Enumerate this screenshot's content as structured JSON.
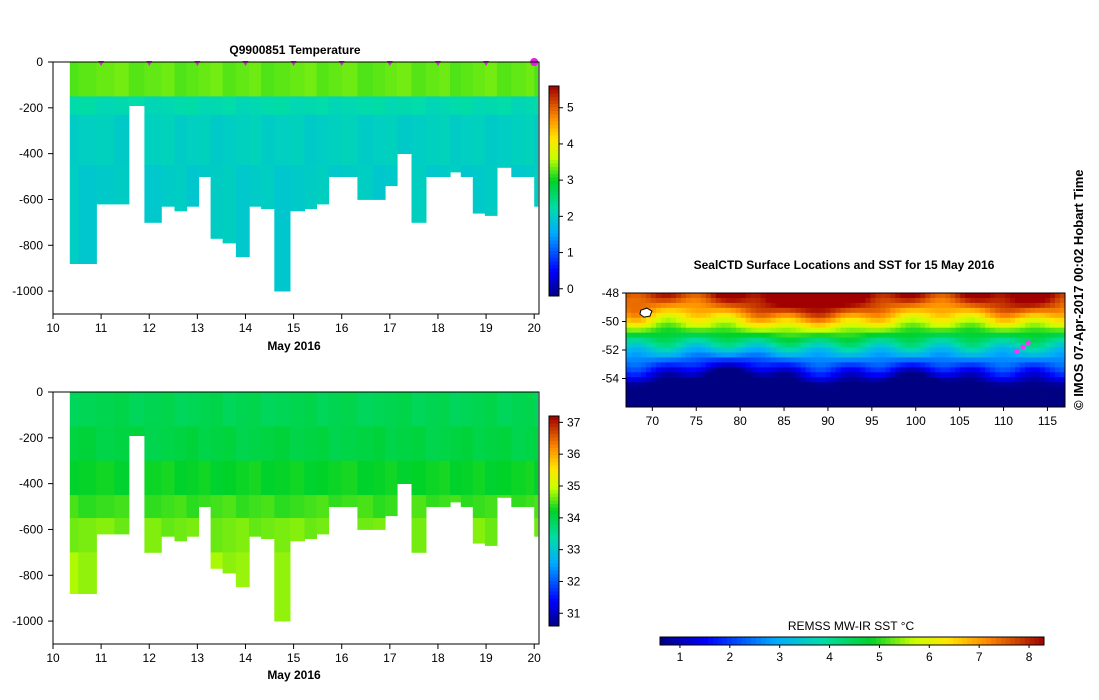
{
  "figure": {
    "credit": "© IMOS 07-Apr-2017 00:02 Hobart Time"
  },
  "chart_data": [
    {
      "type": "heatmap",
      "title": "Q9900851  Temperature",
      "xlabel": "May 2016",
      "ylabel": "",
      "xlim": [
        10,
        20.1
      ],
      "ylim": [
        -1100,
        0
      ],
      "x_ticks": [
        10,
        11,
        12,
        13,
        14,
        15,
        16,
        17,
        18,
        19,
        20
      ],
      "y_ticks": [
        0,
        -200,
        -400,
        -600,
        -800,
        -1000
      ],
      "profile_markers_x": [
        11,
        12,
        13,
        14,
        15,
        16,
        17,
        18,
        19,
        20
      ],
      "colorbar": {
        "min": -0.2,
        "max": 5.6,
        "ticks": [
          0,
          1,
          2,
          3,
          4,
          5
        ]
      },
      "profiles": [
        {
          "x": 10.35,
          "max_depth": 880
        },
        {
          "x": 10.7,
          "max_depth": 880
        },
        {
          "x": 11.1,
          "max_depth": 620
        },
        {
          "x": 11.45,
          "max_depth": 620
        },
        {
          "x": 11.7,
          "max_depth": 190
        },
        {
          "x": 12.1,
          "max_depth": 700
        },
        {
          "x": 12.4,
          "max_depth": 630
        },
        {
          "x": 12.65,
          "max_depth": 650
        },
        {
          "x": 12.9,
          "max_depth": 630
        },
        {
          "x": 13.15,
          "max_depth": 500
        },
        {
          "x": 13.4,
          "max_depth": 770
        },
        {
          "x": 13.65,
          "max_depth": 790
        },
        {
          "x": 13.95,
          "max_depth": 850
        },
        {
          "x": 14.2,
          "max_depth": 630
        },
        {
          "x": 14.45,
          "max_depth": 640
        },
        {
          "x": 14.75,
          "max_depth": 1000
        },
        {
          "x": 15.1,
          "max_depth": 650
        },
        {
          "x": 15.35,
          "max_depth": 640
        },
        {
          "x": 15.6,
          "max_depth": 620
        },
        {
          "x": 15.85,
          "max_depth": 500
        },
        {
          "x": 16.15,
          "max_depth": 500
        },
        {
          "x": 16.5,
          "max_depth": 600
        },
        {
          "x": 16.8,
          "max_depth": 600
        },
        {
          "x": 17.0,
          "max_depth": 540
        },
        {
          "x": 17.3,
          "max_depth": 400
        },
        {
          "x": 17.6,
          "max_depth": 700
        },
        {
          "x": 17.9,
          "max_depth": 500
        },
        {
          "x": 18.15,
          "max_depth": 500
        },
        {
          "x": 18.35,
          "max_depth": 480
        },
        {
          "x": 18.6,
          "max_depth": 500
        },
        {
          "x": 18.85,
          "max_depth": 660
        },
        {
          "x": 19.1,
          "max_depth": 670
        },
        {
          "x": 19.35,
          "max_depth": 460
        },
        {
          "x": 19.7,
          "max_depth": 500
        },
        {
          "x": 19.95,
          "max_depth": 500
        },
        {
          "x": 20.05,
          "max_depth": 630
        }
      ],
      "layers": [
        {
          "from": 0,
          "to": 150,
          "value": 3.3
        },
        {
          "from": 150,
          "to": 230,
          "value": 2.2
        },
        {
          "from": 230,
          "to": 450,
          "value": 2.05
        },
        {
          "from": 450,
          "to": 1100,
          "value": 2.0
        }
      ]
    },
    {
      "type": "heatmap",
      "title": "",
      "xlabel": "May 2016",
      "ylabel": "",
      "xlim": [
        10,
        20.1
      ],
      "ylim": [
        -1100,
        0
      ],
      "x_ticks": [
        10,
        11,
        12,
        13,
        14,
        15,
        16,
        17,
        18,
        19,
        20
      ],
      "y_ticks": [
        0,
        -200,
        -400,
        -600,
        -800,
        -1000
      ],
      "colorbar": {
        "min": 30.6,
        "max": 37.2,
        "ticks": [
          31,
          32,
          33,
          34,
          35,
          36,
          37
        ]
      },
      "layers": [
        {
          "from": 0,
          "to": 150,
          "value": 33.95
        },
        {
          "from": 150,
          "to": 300,
          "value": 34.05
        },
        {
          "from": 300,
          "to": 450,
          "value": 34.25
        },
        {
          "from": 450,
          "to": 550,
          "value": 34.45
        },
        {
          "from": 550,
          "to": 700,
          "value": 34.65
        },
        {
          "from": 700,
          "to": 1100,
          "value": 34.8
        }
      ]
    },
    {
      "type": "heatmap",
      "title": "SealCTD Surface Locations and SST for 15 May 2016",
      "xlabel": "",
      "ylabel": "",
      "xlim": [
        67,
        117
      ],
      "ylim": [
        -56,
        -48
      ],
      "x_ticks": [
        70,
        75,
        80,
        85,
        90,
        95,
        100,
        105,
        110,
        115
      ],
      "y_ticks": [
        -48,
        -50,
        -52,
        -54
      ],
      "colorbar": {
        "label": "REMSS MW-IR SST °C",
        "min": 0.6,
        "max": 8.3,
        "ticks": [
          1,
          2,
          3,
          4,
          5,
          6,
          7,
          8
        ]
      },
      "sst_grid_lon": [
        67,
        71,
        75,
        79,
        83,
        87,
        91,
        95,
        99,
        103,
        107,
        111,
        115
      ],
      "sst_grid_lat": [
        -48,
        -49,
        -50,
        -51,
        -52,
        -53,
        -54,
        -55,
        -56
      ],
      "seal_track": [
        {
          "lon": 111.5,
          "lat": -52.1
        },
        {
          "lon": 112.2,
          "lat": -51.8
        },
        {
          "lon": 112.8,
          "lat": -51.5
        }
      ]
    }
  ]
}
